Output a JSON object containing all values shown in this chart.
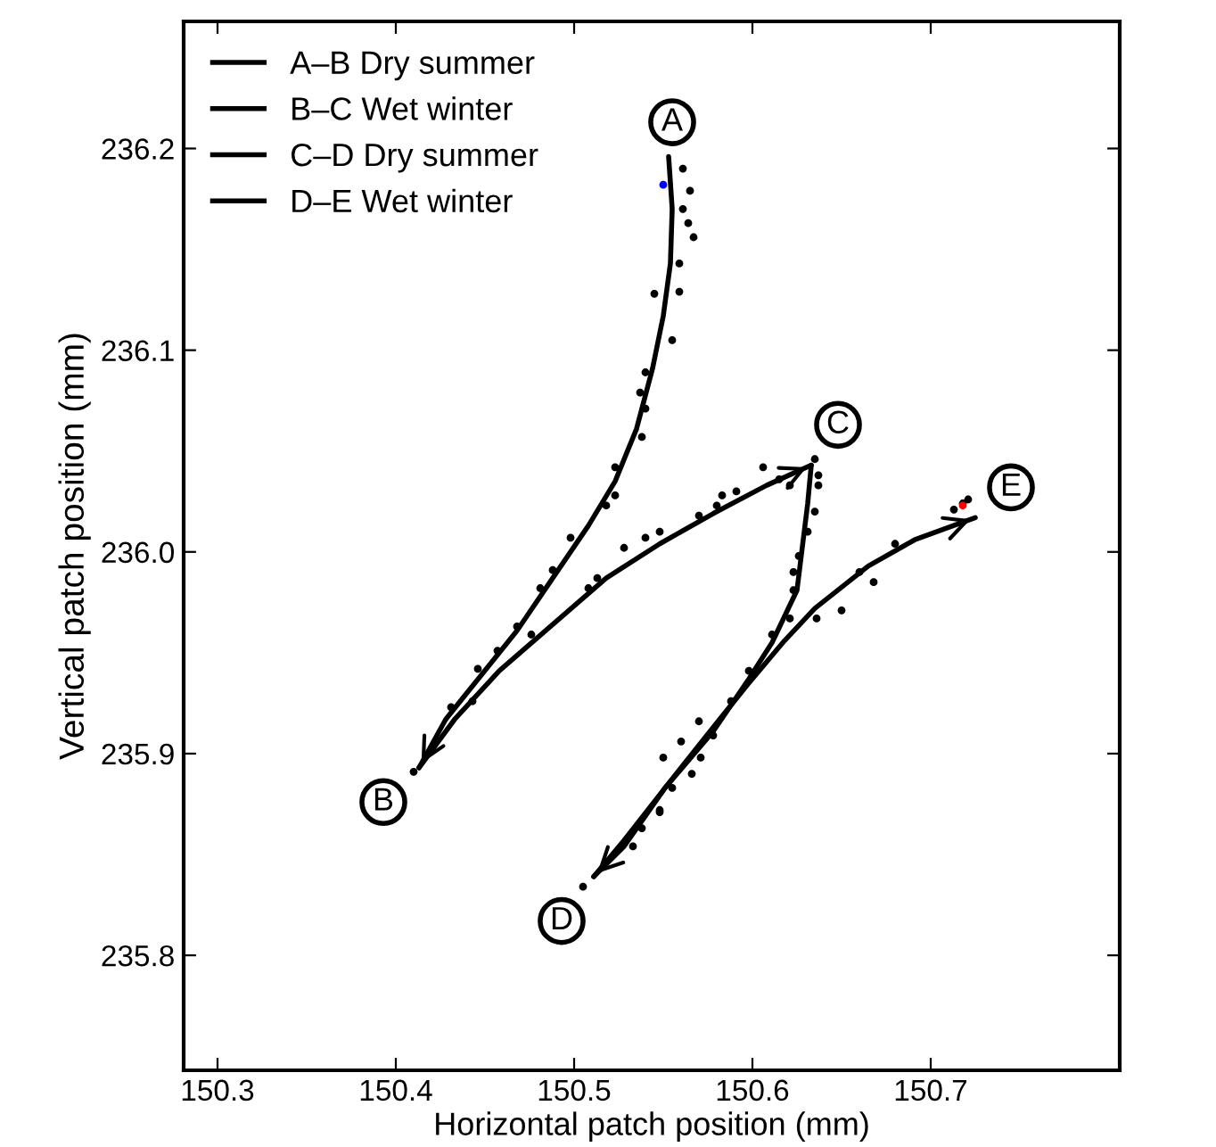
{
  "chart_data": {
    "type": "scatter",
    "xlabel": "Horizontal patch position (mm)",
    "ylabel": "Vertical patch position (mm)",
    "xlim": [
      150.281,
      150.806
    ],
    "ylim": [
      235.743,
      236.263
    ],
    "xticks": [
      150.3,
      150.4,
      150.5,
      150.6,
      150.7
    ],
    "yticks": [
      235.8,
      235.9,
      {
        "value": 236.0,
        "label": "236.0"
      },
      236.1,
      236.2
    ],
    "grid": false,
    "legend": "top left",
    "series": [
      {
        "marker": "circle",
        "color": "#000000",
        "x": [
          150.561,
          150.565,
          150.561,
          150.564,
          150.567,
          150.559,
          150.545,
          150.559,
          150.555,
          150.54,
          150.537,
          150.54,
          150.538,
          150.523,
          150.518,
          150.523,
          150.498,
          150.488,
          150.481,
          150.468,
          150.457,
          150.446,
          150.431,
          150.443,
          150.41,
          150.508,
          150.513,
          150.476,
          150.528,
          150.54,
          150.548,
          150.57,
          150.58,
          150.583,
          150.591,
          150.606,
          150.615,
          150.621,
          150.635,
          150.637,
          150.637,
          150.635,
          150.631,
          150.626,
          150.623,
          150.623,
          150.621,
          150.611,
          150.598,
          150.588,
          150.57,
          150.56,
          150.55,
          150.566,
          150.548,
          150.718,
          150.721,
          150.713,
          150.68,
          150.66,
          150.668,
          150.65,
          150.636,
          150.571,
          150.555,
          150.548,
          150.538,
          150.533,
          150.505,
          150.578
        ],
        "values": [
          236.19,
          236.179,
          236.17,
          236.163,
          236.156,
          236.143,
          236.128,
          236.129,
          236.105,
          236.089,
          236.079,
          236.071,
          236.057,
          236.042,
          236.023,
          236.028,
          236.007,
          235.991,
          235.982,
          235.963,
          235.951,
          235.942,
          235.923,
          235.926,
          235.891,
          235.982,
          235.987,
          235.959,
          236.002,
          236.007,
          236.01,
          236.018,
          236.023,
          236.028,
          236.03,
          236.042,
          236.036,
          236.033,
          236.046,
          236.038,
          236.033,
          236.02,
          236.01,
          235.998,
          235.99,
          235.981,
          235.967,
          235.959,
          235.941,
          235.926,
          235.916,
          235.906,
          235.898,
          235.89,
          235.872,
          236.024,
          236.026,
          236.021,
          236.004,
          235.99,
          235.985,
          235.971,
          235.967,
          235.898,
          235.883,
          235.871,
          235.863,
          235.854,
          235.834,
          235.909
        ]
      },
      {
        "type": "scatter",
        "marker": "circle",
        "color": "#0000ff",
        "x": [
          150.55
        ],
        "values": [
          236.182
        ]
      },
      {
        "type": "scatter",
        "marker": "circle",
        "color": "#ff0000",
        "x": [
          150.718
        ],
        "values": [
          236.023
        ]
      },
      {
        "type": "line",
        "name": "A–B Dry summer",
        "color": "#000000",
        "x": [
          150.553,
          150.555,
          150.554,
          150.55,
          150.544,
          150.535,
          150.523,
          150.508,
          150.488,
          150.468,
          150.448,
          150.428,
          150.413
        ],
        "values": [
          236.196,
          236.17,
          236.143,
          236.117,
          236.091,
          236.061,
          236.035,
          236.013,
          235.987,
          235.961,
          235.939,
          235.917,
          235.893
        ]
      },
      {
        "type": "line",
        "name": "B–C Wet winter",
        "color": "#000000",
        "x": [
          150.413,
          150.433,
          150.458,
          150.488,
          150.518,
          150.548,
          150.578,
          150.608,
          150.633
        ],
        "values": [
          235.893,
          235.917,
          235.941,
          235.964,
          235.987,
          236.004,
          236.019,
          236.033,
          236.043
        ]
      },
      {
        "type": "line",
        "name": "C–D Dry summer",
        "color": "#000000",
        "x": [
          150.633,
          150.631,
          150.625,
          150.611,
          150.598,
          150.578,
          150.551,
          150.528,
          150.511
        ],
        "values": [
          236.043,
          236.024,
          235.981,
          235.955,
          235.937,
          235.911,
          235.883,
          235.854,
          235.839
        ]
      },
      {
        "type": "line",
        "name": "D–E Wet winter",
        "color": "#000000",
        "x": [
          150.511,
          150.528,
          150.551,
          150.578,
          150.598,
          150.618,
          150.635,
          150.665,
          150.691,
          150.725
        ],
        "values": [
          235.839,
          235.857,
          235.883,
          235.913,
          235.935,
          235.956,
          235.972,
          235.993,
          236.006,
          236.017
        ]
      }
    ],
    "annotations": [
      {
        "text": "A",
        "x": 150.555,
        "y": 236.213
      },
      {
        "text": "B",
        "x": 150.393,
        "y": 235.876
      },
      {
        "text": "C",
        "x": 150.648,
        "y": 236.063
      },
      {
        "text": "D",
        "x": 150.493,
        "y": 235.817
      },
      {
        "text": "E",
        "x": 150.745,
        "y": 236.032
      }
    ]
  }
}
